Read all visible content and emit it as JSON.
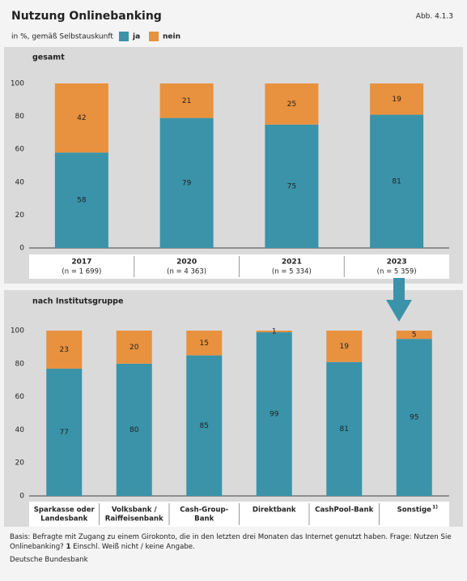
{
  "header": {
    "title": "Nutzung Onlinebanking",
    "figure_number": "Abb. 4.1.3",
    "subtitle": "in %, gemäß Selbstauskunft"
  },
  "chart_data": [
    {
      "type": "stacked-bar",
      "title": "gesamt",
      "categories": [
        "2017",
        "2020",
        "2021",
        "2023"
      ],
      "category_notes": [
        "(n = 1 699)",
        "(n = 4 363)",
        "(n = 5 334)",
        "(n = 5 359)"
      ],
      "series": [
        {
          "name": "ja",
          "color": "#3a93a9",
          "values": [
            58,
            79,
            75,
            81
          ]
        },
        {
          "name": "nein",
          "color": "#e8913e",
          "values": [
            42,
            21,
            25,
            19
          ]
        }
      ],
      "ylim": [
        0,
        100
      ],
      "yticks": [
        0,
        20,
        40,
        60,
        80,
        100
      ],
      "grid": false
    },
    {
      "type": "stacked-bar",
      "title": "nach Institutsgruppe",
      "categories": [
        [
          "Sparkasse oder",
          "Landesbank"
        ],
        [
          "Volksbank /",
          "Raiffeisenbank"
        ],
        [
          "Cash-Group-",
          "Bank"
        ],
        [
          "Direktbank"
        ],
        [
          "CashPool-Bank"
        ],
        [
          "Sonstige"
        ]
      ],
      "category_superscripts": [
        null,
        null,
        null,
        null,
        null,
        "1)"
      ],
      "series": [
        {
          "color": "#3a93a9",
          "values": [
            77,
            80,
            85,
            99,
            81,
            95
          ]
        },
        {
          "color": "#e8913e",
          "values": [
            23,
            20,
            15,
            1,
            19,
            5
          ]
        }
      ],
      "ylim": [
        0,
        100
      ],
      "yticks": [
        0,
        20,
        40,
        60,
        80,
        100
      ],
      "grid": false
    }
  ],
  "footer": {
    "note": "Basis: Befragte mit Zugang zu einem Girokonto, die in den letzten drei Monaten das Internet genutzt haben. Frage: Nutzen Sie Onlinebanking?",
    "footnote_mark": "1",
    "footnote_text": "Einschl. Weiß nicht / keine Angabe.",
    "source": "Deutsche Bundesbank"
  }
}
